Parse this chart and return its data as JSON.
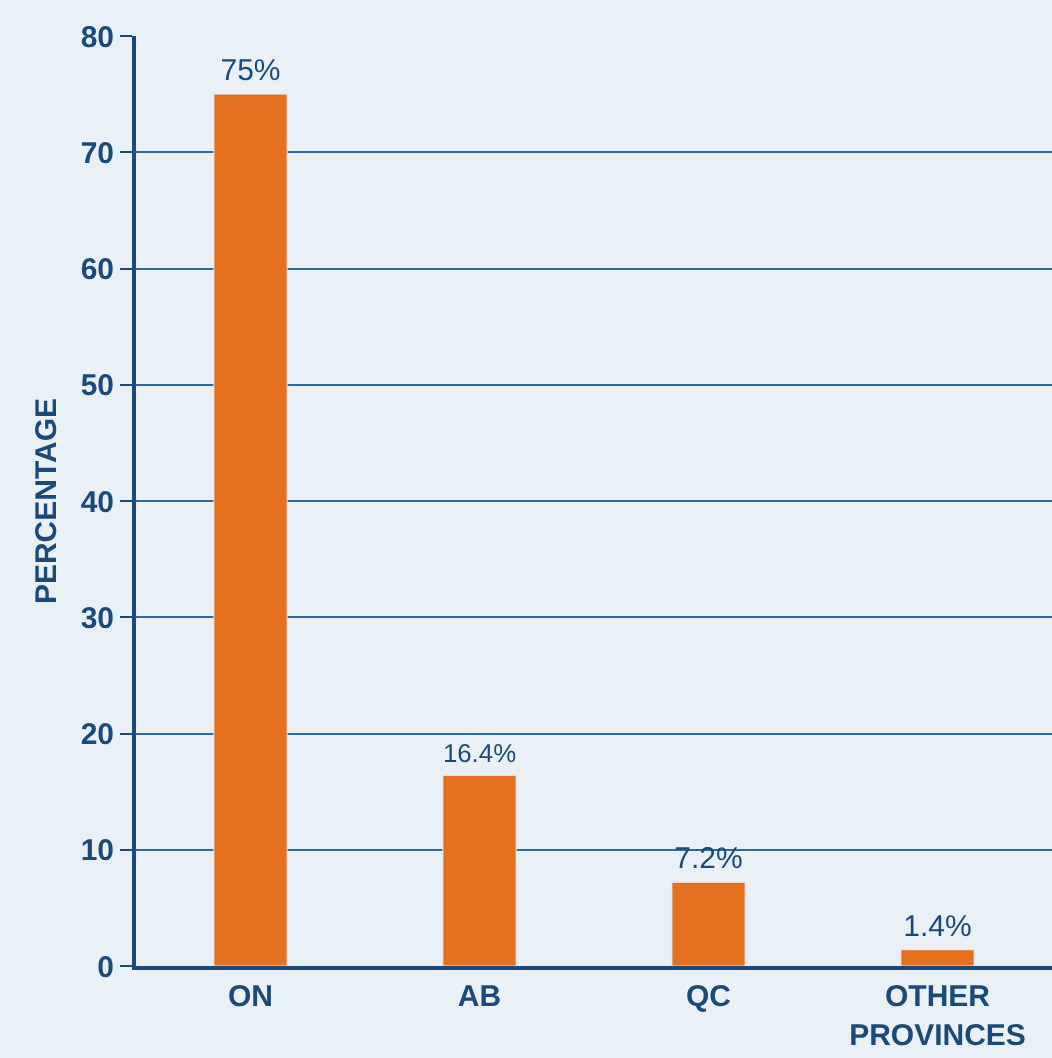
{
  "chart_data": {
    "type": "bar",
    "ylabel": "PERCENTAGE",
    "categories": [
      "ON",
      "AB",
      "QC",
      "OTHER PROVINCES"
    ],
    "values": [
      75,
      16.4,
      7.2,
      1.4
    ],
    "value_labels": [
      "75%",
      "16.4%",
      "7.2%",
      "1.4%"
    ],
    "color": "#e5711f",
    "ylim": [
      0,
      80
    ],
    "yticks": [
      0,
      10,
      20,
      30,
      40,
      50,
      60,
      70,
      80
    ],
    "grid": "y",
    "legend": false
  }
}
